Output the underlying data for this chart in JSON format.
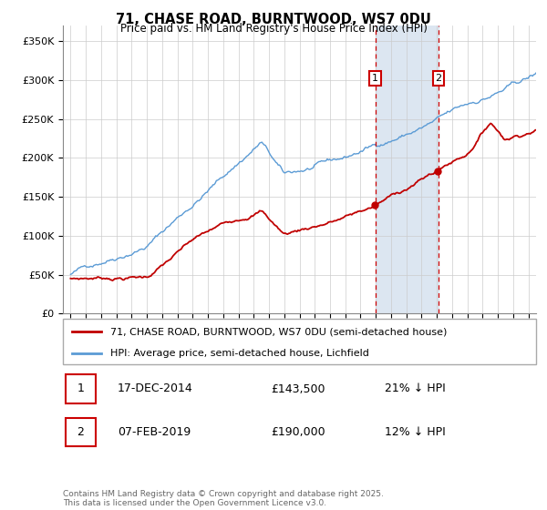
{
  "title": "71, CHASE ROAD, BURNTWOOD, WS7 0DU",
  "subtitle": "Price paid vs. HM Land Registry's House Price Index (HPI)",
  "hpi_label": "HPI: Average price, semi-detached house, Lichfield",
  "property_label": "71, CHASE ROAD, BURNTWOOD, WS7 0DU (semi-detached house)",
  "hpi_color": "#5b9bd5",
  "property_color": "#c00000",
  "shading_color": "#dce6f1",
  "sale1_date": "17-DEC-2014",
  "sale1_price": 143500,
  "sale1_hpi_pct": "21% ↓ HPI",
  "sale2_date": "07-FEB-2019",
  "sale2_price": 190000,
  "sale2_hpi_pct": "12% ↓ HPI",
  "yticks": [
    0,
    50000,
    100000,
    150000,
    200000,
    250000,
    300000,
    350000
  ],
  "footer": "Contains HM Land Registry data © Crown copyright and database right 2025.\nThis data is licensed under the Open Government Licence v3.0.",
  "vline1_year": 2014.96,
  "vline2_year": 2019.1,
  "background_color": "#ffffff",
  "xlim_left": 1994.5,
  "xlim_right": 2025.5,
  "ylim_bottom": 0,
  "ylim_top": 370000
}
